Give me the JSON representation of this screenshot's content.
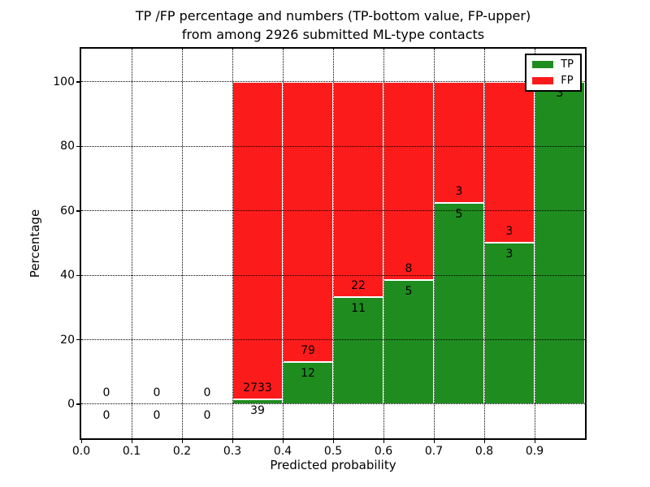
{
  "figure": {
    "title_line1": "TP /FP percentage and numbers (TP-bottom value, FP-upper)",
    "title_line2": "from among 2926 submitted ML-type contacts"
  },
  "chart_data": {
    "type": "bar",
    "stacked": true,
    "title": "TP /FP percentage and numbers (TP-bottom value, FP-upper) from among 2926 submitted ML-type contacts",
    "xlabel": "Predicted probability",
    "ylabel": "Percentage",
    "xlim": [
      0.0,
      1.0
    ],
    "ylim": [
      -10.6,
      110.3
    ],
    "xticks": [
      "0.0",
      "0.1",
      "0.2",
      "0.3",
      "0.4",
      "0.5",
      "0.6",
      "0.7",
      "0.8",
      "0.9"
    ],
    "yticks": [
      0,
      20,
      40,
      60,
      80,
      100
    ],
    "grid": true,
    "total_submitted": 2926,
    "colors": {
      "tp": "#1f8c1f",
      "fp": "#fc1b1b",
      "bar_edge": "#ffffff"
    },
    "legend": {
      "position": "upper right",
      "entries": [
        {
          "label": "TP",
          "color": "#1f8c1f"
        },
        {
          "label": "FP",
          "color": "#fc1b1b"
        }
      ]
    },
    "bins": [
      {
        "range": [
          0.0,
          0.1
        ],
        "tp_count": 0,
        "fp_count": 0,
        "tp_pct": 0.0,
        "fp_pct": 0.0
      },
      {
        "range": [
          0.1,
          0.2
        ],
        "tp_count": 0,
        "fp_count": 0,
        "tp_pct": 0.0,
        "fp_pct": 0.0
      },
      {
        "range": [
          0.2,
          0.3
        ],
        "tp_count": 0,
        "fp_count": 0,
        "tp_pct": 0.0,
        "fp_pct": 0.0
      },
      {
        "range": [
          0.3,
          0.4
        ],
        "tp_count": 39,
        "fp_count": 2733,
        "tp_pct": 1.41,
        "fp_pct": 98.59
      },
      {
        "range": [
          0.4,
          0.5
        ],
        "tp_count": 12,
        "fp_count": 79,
        "tp_pct": 13.19,
        "fp_pct": 86.81
      },
      {
        "range": [
          0.5,
          0.6
        ],
        "tp_count": 11,
        "fp_count": 22,
        "tp_pct": 33.33,
        "fp_pct": 66.67
      },
      {
        "range": [
          0.6,
          0.7
        ],
        "tp_count": 5,
        "fp_count": 8,
        "tp_pct": 38.46,
        "fp_pct": 61.54
      },
      {
        "range": [
          0.7,
          0.8
        ],
        "tp_count": 5,
        "fp_count": 3,
        "tp_pct": 62.5,
        "fp_pct": 37.5
      },
      {
        "range": [
          0.8,
          0.9
        ],
        "tp_count": 3,
        "fp_count": 3,
        "tp_pct": 50.0,
        "fp_pct": 50.0
      },
      {
        "range": [
          0.9,
          1.0
        ],
        "tp_count": 3,
        "fp_count": 0,
        "tp_pct": 100.0,
        "fp_pct": 0.0
      }
    ]
  }
}
